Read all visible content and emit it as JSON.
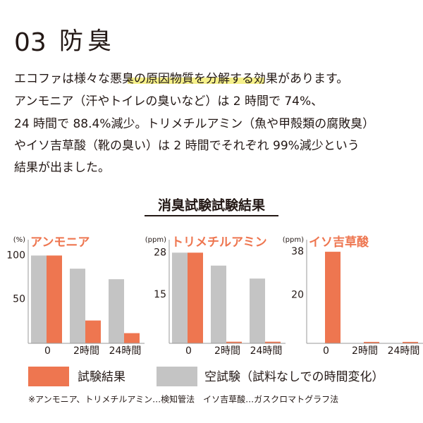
{
  "header": {
    "number": "03",
    "title": "防臭"
  },
  "paragraph": {
    "first_line": [
      "エコファは様々な",
      "悪臭の原因物質を分解",
      "する効果があります。"
    ],
    "lines": [
      "アンモニア（汗やトイレの臭いなど）は 2 時間で 74%、",
      "24 時間で 88.4%減少。トリメチルアミン（魚や甲殻類の腐敗臭）",
      "やイソ吉草酸（靴の臭い）は 2 時間でそれぞれ 99%減少という",
      "結果が出ました。"
    ]
  },
  "section_title": "消臭試験試験結果",
  "chart_data": [
    {
      "type": "bar",
      "title": "アンモニア",
      "unit": "(%)",
      "categories": [
        "0",
        "2時間",
        "24時間"
      ],
      "series": [
        {
          "name": "空試験（試料なしでの時間変化）",
          "color": "#c4c4c4",
          "values": [
            100,
            85,
            73
          ]
        },
        {
          "name": "試験結果",
          "color": "#ee7650",
          "values": [
            100,
            26,
            11.6
          ]
        }
      ],
      "ylim": [
        0,
        118
      ],
      "yticks": [
        50,
        100
      ]
    },
    {
      "type": "bar",
      "title": "トリメチルアミン",
      "unit": "(ppm)",
      "categories": [
        "0",
        "2時間",
        "24時間"
      ],
      "series": [
        {
          "color": "#c4c4c4",
          "values": [
            28,
            24,
            20
          ]
        },
        {
          "color": "#ee7650",
          "values": [
            28,
            0.5,
            0.5
          ]
        }
      ],
      "ylim": [
        0,
        32
      ],
      "yticks": [
        15,
        28
      ]
    },
    {
      "type": "bar",
      "title": "イソ吉草酸",
      "unit": "(ppm)",
      "categories": [
        "0",
        "2時間",
        "24時間"
      ],
      "series": [
        {
          "color": "#c4c4c4",
          "values": [
            null,
            null,
            null
          ]
        },
        {
          "color": "#ee7650",
          "values": [
            38,
            0.6,
            0.6
          ]
        }
      ],
      "ylim": [
        0,
        43
      ],
      "yticks": [
        20,
        38
      ]
    }
  ],
  "footnote": "※アンモニア、トリメチルアミン…検知管法　イソ吉草酸…ガスクロマトグラフ法"
}
